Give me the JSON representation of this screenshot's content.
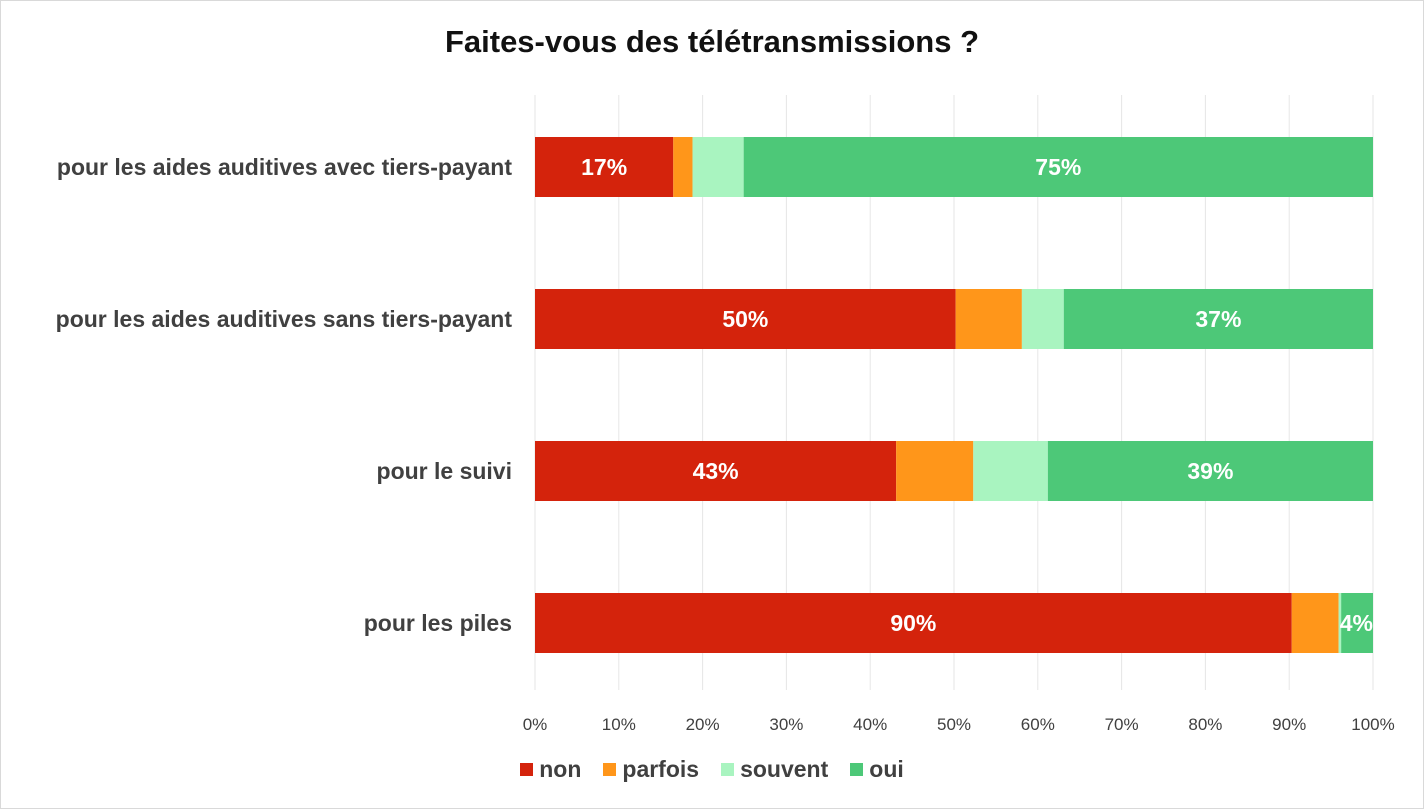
{
  "chart_data": {
    "type": "bar",
    "orientation": "horizontal",
    "stacked": true,
    "title": "Faites-vous des télétransmissions ?",
    "categories": [
      "pour les aides auditives avec tiers-payant",
      "pour les aides auditives sans tiers-payant",
      "pour le suivi",
      "pour les piles"
    ],
    "series": [
      {
        "name": "non",
        "color": "#d4230c",
        "values": [
          16.5,
          50.2,
          43.1,
          90.3
        ]
      },
      {
        "name": "parfois",
        "color": "#ff961a",
        "values": [
          2.3,
          7.9,
          9.2,
          5.6
        ]
      },
      {
        "name": "souvent",
        "color": "#a9f4c0",
        "values": [
          6.1,
          5.0,
          8.9,
          0.3
        ]
      },
      {
        "name": "oui",
        "color": "#4dc878",
        "values": [
          75.1,
          36.9,
          38.8,
          3.8
        ]
      }
    ],
    "data_labels": [
      [
        "17%",
        null,
        null,
        "75%"
      ],
      [
        "50%",
        null,
        null,
        "37%"
      ],
      [
        "43%",
        null,
        null,
        "39%"
      ],
      [
        "90%",
        null,
        null,
        "4%"
      ]
    ],
    "xlim": [
      0,
      100
    ],
    "xticks": [
      "0%",
      "10%",
      "20%",
      "30%",
      "40%",
      "50%",
      "60%",
      "70%",
      "80%",
      "90%",
      "100%"
    ],
    "grid": true,
    "legend": "bottom"
  }
}
